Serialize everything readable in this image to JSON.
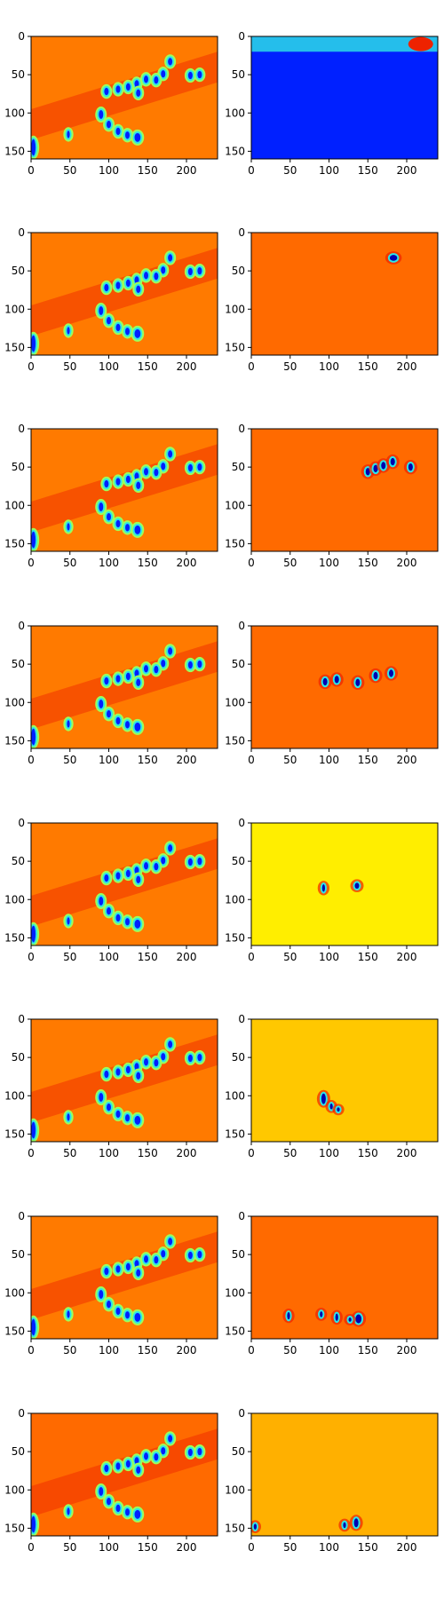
{
  "figure": {
    "x_ticks": [
      "0",
      "50",
      "100",
      "150",
      "200"
    ],
    "y_ticks": [
      "0",
      "50",
      "100",
      "150"
    ]
  },
  "colors": {
    "blue": "#0020ff",
    "orange": "#ff6a00",
    "orange_light": "#ff7a00",
    "red": "#ee2200",
    "yellow": "#ffee00",
    "yellow_orange": "#ffc800",
    "amber": "#ffb000",
    "cyan": "#2ee6e6",
    "green": "#9cff5a",
    "navy": "#0000b0"
  },
  "chart_data": [
    {
      "type": "heatmap",
      "row": 1,
      "col": 1,
      "xlim": [
        0,
        240
      ],
      "ylim": [
        160,
        0
      ],
      "background": "orange_light",
      "grid": false
    },
    {
      "type": "heatmap",
      "row": 1,
      "col": 2,
      "xlim": [
        0,
        240
      ],
      "ylim": [
        160,
        0
      ],
      "background": "blue",
      "grid": false
    },
    {
      "type": "heatmap",
      "row": 2,
      "col": 1,
      "xlim": [
        0,
        240
      ],
      "ylim": [
        160,
        0
      ],
      "background": "orange_light",
      "grid": false
    },
    {
      "type": "heatmap",
      "row": 2,
      "col": 2,
      "xlim": [
        0,
        240
      ],
      "ylim": [
        160,
        0
      ],
      "background": "orange",
      "grid": false
    },
    {
      "type": "heatmap",
      "row": 3,
      "col": 1,
      "xlim": [
        0,
        240
      ],
      "ylim": [
        160,
        0
      ],
      "background": "orange_light",
      "grid": false
    },
    {
      "type": "heatmap",
      "row": 3,
      "col": 2,
      "xlim": [
        0,
        240
      ],
      "ylim": [
        160,
        0
      ],
      "background": "orange",
      "grid": false
    },
    {
      "type": "heatmap",
      "row": 4,
      "col": 1,
      "xlim": [
        0,
        240
      ],
      "ylim": [
        160,
        0
      ],
      "background": "orange_light",
      "grid": false
    },
    {
      "type": "heatmap",
      "row": 4,
      "col": 2,
      "xlim": [
        0,
        240
      ],
      "ylim": [
        160,
        0
      ],
      "background": "orange",
      "grid": false
    },
    {
      "type": "heatmap",
      "row": 5,
      "col": 1,
      "xlim": [
        0,
        240
      ],
      "ylim": [
        160,
        0
      ],
      "background": "orange_light",
      "grid": false
    },
    {
      "type": "heatmap",
      "row": 5,
      "col": 2,
      "xlim": [
        0,
        240
      ],
      "ylim": [
        160,
        0
      ],
      "background": "yellow",
      "grid": false
    },
    {
      "type": "heatmap",
      "row": 6,
      "col": 1,
      "xlim": [
        0,
        240
      ],
      "ylim": [
        160,
        0
      ],
      "background": "orange_light",
      "grid": false
    },
    {
      "type": "heatmap",
      "row": 6,
      "col": 2,
      "xlim": [
        0,
        240
      ],
      "ylim": [
        160,
        0
      ],
      "background": "yellow_orange",
      "grid": false
    },
    {
      "type": "heatmap",
      "row": 7,
      "col": 1,
      "xlim": [
        0,
        240
      ],
      "ylim": [
        160,
        0
      ],
      "background": "orange_light",
      "grid": false
    },
    {
      "type": "heatmap",
      "row": 7,
      "col": 2,
      "xlim": [
        0,
        240
      ],
      "ylim": [
        160,
        0
      ],
      "background": "orange",
      "grid": false
    },
    {
      "type": "heatmap",
      "row": 8,
      "col": 1,
      "xlim": [
        0,
        240
      ],
      "ylim": [
        160,
        0
      ],
      "background": "orange",
      "grid": false
    },
    {
      "type": "heatmap",
      "row": 8,
      "col": 2,
      "xlim": [
        0,
        240
      ],
      "ylim": [
        160,
        0
      ],
      "background": "amber",
      "grid": false
    }
  ]
}
